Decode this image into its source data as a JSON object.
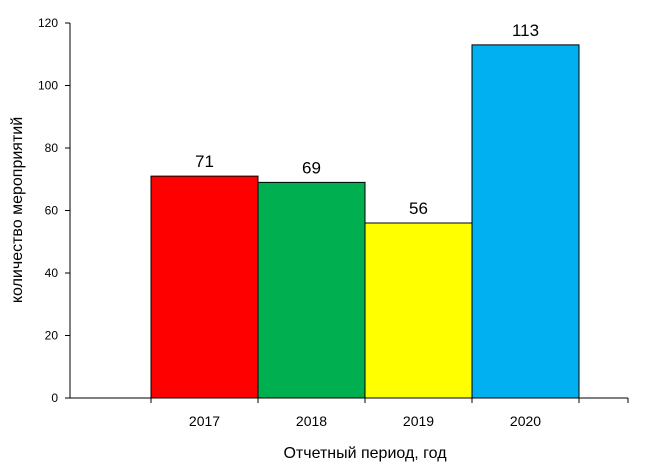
{
  "chart_data": {
    "type": "bar",
    "title": "",
    "categories": [
      "2017",
      "2018",
      "2019",
      "2020"
    ],
    "values": [
      71,
      69,
      56,
      113
    ],
    "colors": [
      "#ff0000",
      "#00b050",
      "#ffff00",
      "#00b0f0"
    ],
    "xlabel": "Отчетный период, год",
    "ylabel": "количество мероприятий",
    "ylim": [
      0,
      120
    ],
    "yticks": [
      0,
      20,
      40,
      60,
      80,
      100,
      120
    ],
    "grid": false,
    "legend": "none",
    "data_labels": true
  }
}
